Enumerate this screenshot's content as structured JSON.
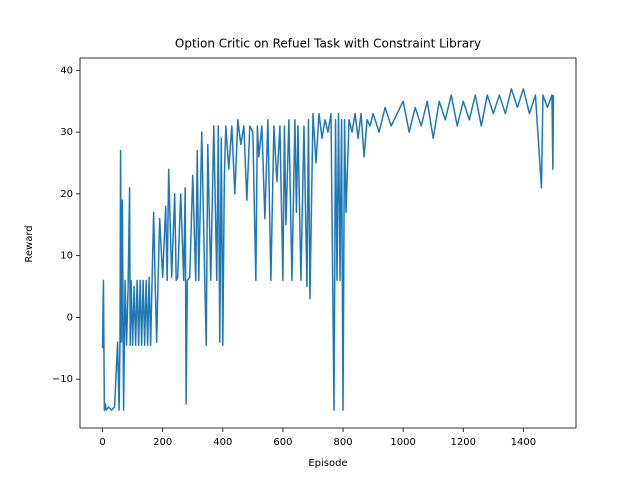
{
  "chart_data": {
    "type": "line",
    "title": "Option Critic on Refuel Task with Constraint Library",
    "x_label": "Episode",
    "y_label": "Reward",
    "color": "#1f77b4",
    "x": [
      0,
      3,
      6,
      9,
      12,
      20,
      30,
      40,
      50,
      55,
      58,
      60,
      63,
      66,
      70,
      75,
      80,
      85,
      90,
      92,
      95,
      100,
      105,
      110,
      115,
      120,
      125,
      130,
      135,
      140,
      145,
      150,
      155,
      160,
      165,
      170,
      175,
      180,
      185,
      190,
      200,
      210,
      215,
      220,
      230,
      240,
      245,
      250,
      260,
      270,
      275,
      278,
      282,
      290,
      300,
      310,
      315,
      320,
      330,
      340,
      345,
      350,
      360,
      370,
      380,
      385,
      390,
      395,
      400,
      405,
      410,
      420,
      430,
      440,
      450,
      460,
      470,
      480,
      490,
      500,
      510,
      515,
      520,
      530,
      540,
      550,
      560,
      570,
      580,
      590,
      600,
      605,
      610,
      620,
      630,
      640,
      645,
      650,
      660,
      670,
      680,
      685,
      690,
      700,
      710,
      720,
      730,
      740,
      750,
      760,
      770,
      775,
      780,
      785,
      790,
      795,
      800,
      805,
      810,
      820,
      830,
      840,
      850,
      860,
      870,
      880,
      890,
      900,
      920,
      940,
      960,
      980,
      1000,
      1020,
      1040,
      1060,
      1080,
      1100,
      1120,
      1140,
      1160,
      1180,
      1200,
      1220,
      1240,
      1260,
      1280,
      1300,
      1320,
      1340,
      1360,
      1380,
      1400,
      1420,
      1440,
      1460,
      1465,
      1480,
      1495,
      1498,
      1500
    ],
    "values": [
      -5,
      6,
      -15,
      -14,
      -15,
      -14.5,
      -15,
      -14.5,
      -4,
      -15,
      -4,
      27,
      -4,
      19,
      -15,
      6,
      -4.5,
      5,
      21,
      -4.5,
      6,
      -4.5,
      5,
      -4.5,
      6,
      -4.5,
      6,
      -4.5,
      6,
      -4.5,
      6,
      -4.5,
      6.5,
      -4.5,
      6.5,
      17,
      6,
      -4,
      6.5,
      16,
      6.5,
      18,
      6,
      24,
      6.5,
      20,
      6,
      6.5,
      20,
      6,
      21,
      -14,
      6,
      6.5,
      23,
      6,
      27,
      6,
      30,
      6,
      -4.5,
      28,
      6,
      31,
      6,
      31,
      -4,
      29,
      -4.5,
      22,
      31,
      24,
      31,
      20,
      32,
      28,
      31,
      19,
      31,
      30,
      6,
      31,
      26,
      31,
      16,
      32,
      6,
      31,
      22,
      31,
      6,
      31,
      15,
      32,
      6,
      32,
      17,
      31,
      6,
      31,
      5,
      32,
      3,
      33,
      25,
      33,
      29,
      32,
      30,
      33,
      -15,
      32,
      6,
      33,
      6,
      32,
      -15,
      32,
      17,
      32,
      30,
      33,
      29,
      33,
      26,
      32,
      31,
      33,
      30,
      34,
      31,
      33,
      35,
      30,
      34,
      31,
      35,
      29,
      35,
      32,
      36,
      31,
      35,
      32,
      36,
      31,
      36,
      33,
      36,
      33,
      37,
      34,
      37,
      33,
      36,
      21,
      36,
      34,
      36,
      24,
      36
    ],
    "xlim": [
      -75,
      1575
    ],
    "ylim": [
      -17.9,
      42.0
    ],
    "xticks": [
      0,
      200,
      400,
      600,
      800,
      1000,
      1200,
      1400
    ],
    "yticks": [
      {
        "value": -10,
        "label": "−10"
      },
      0,
      10,
      20,
      30,
      40
    ]
  }
}
